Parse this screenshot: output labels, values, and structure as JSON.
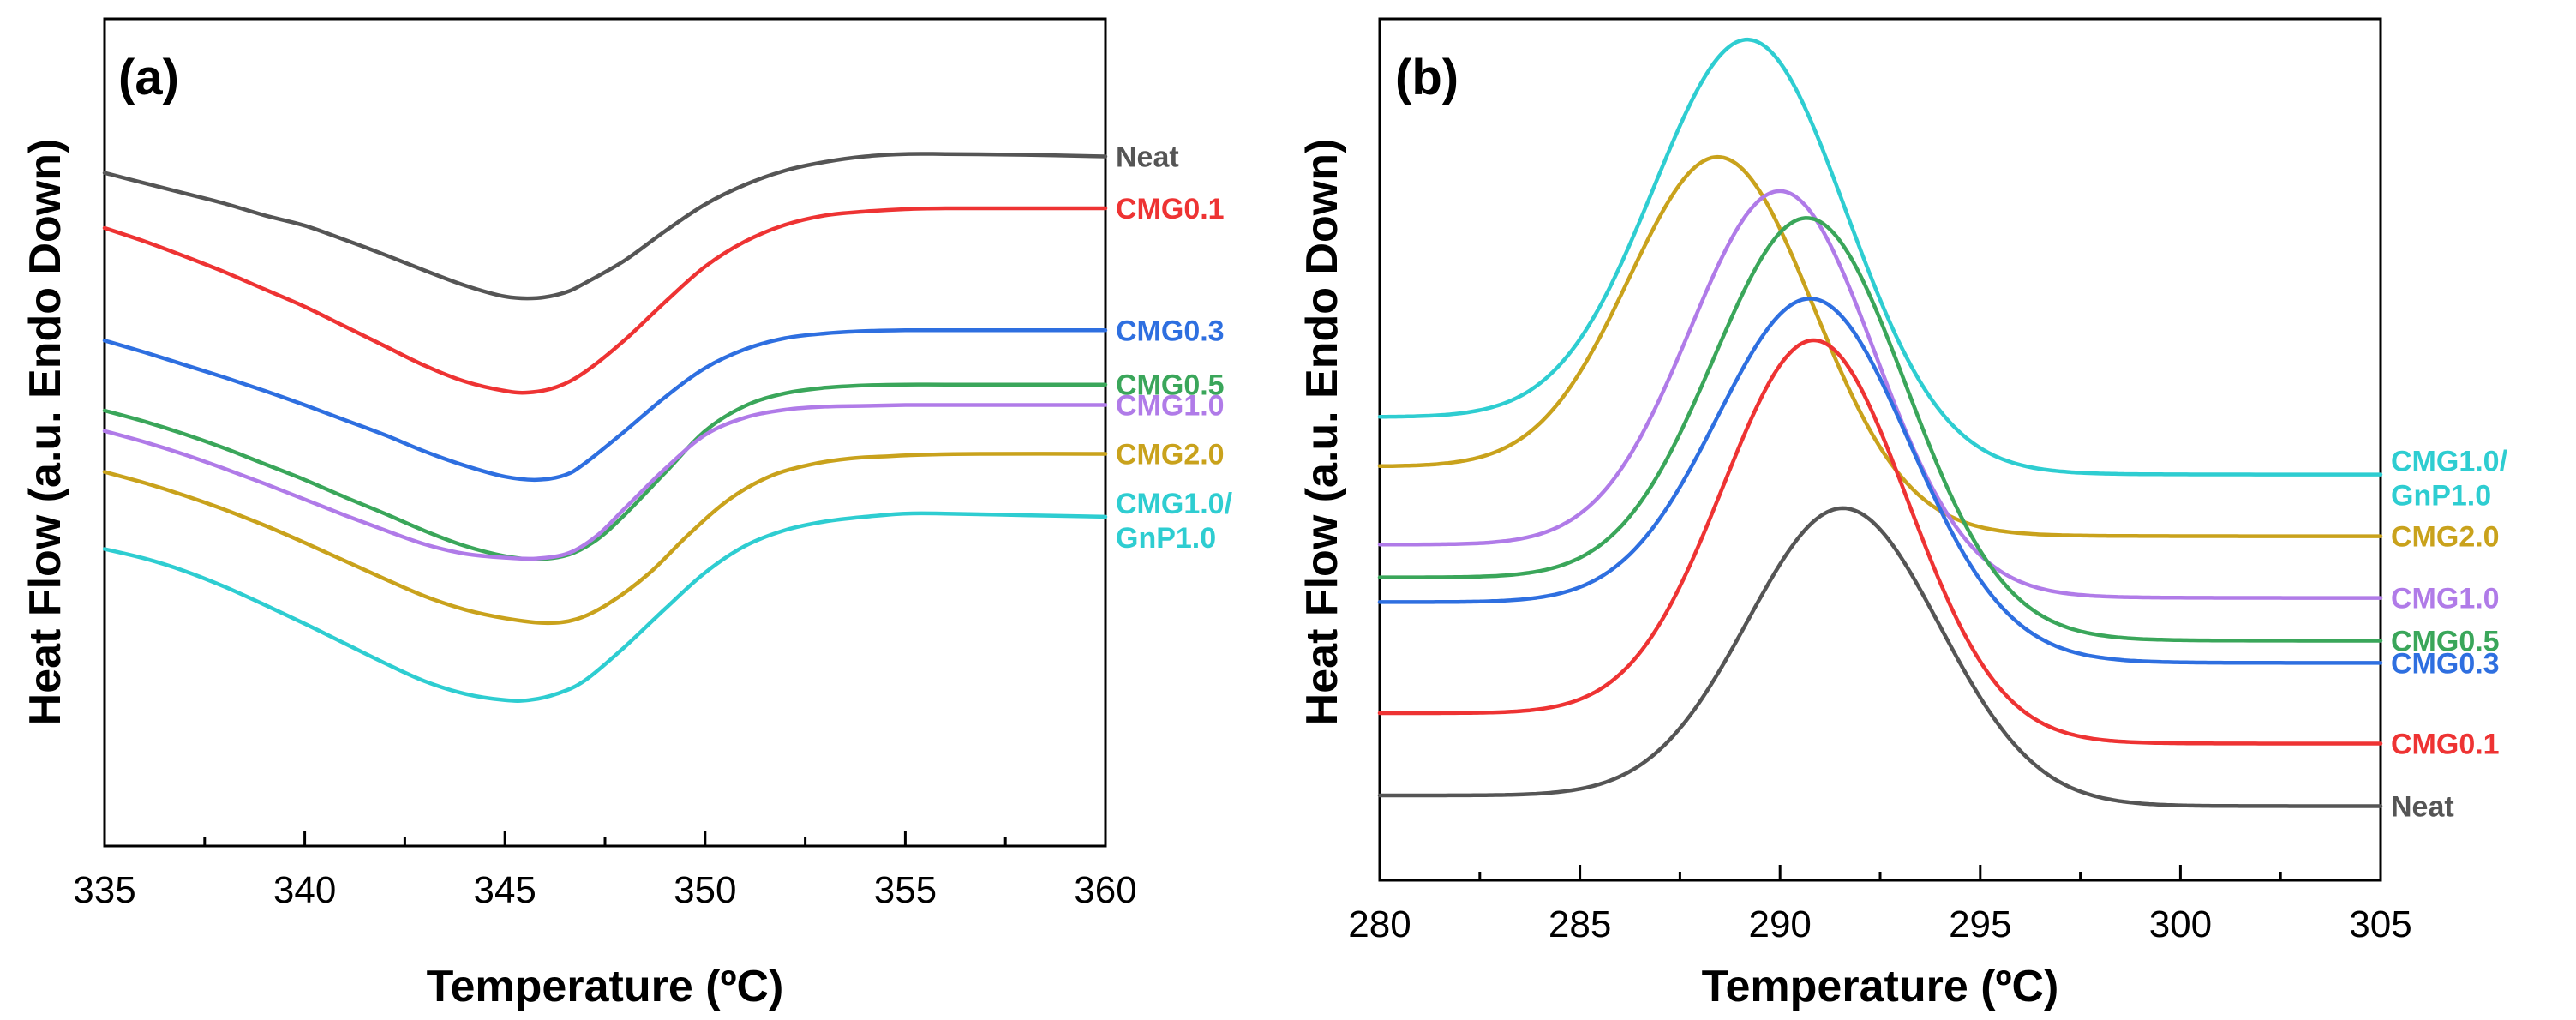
{
  "chart_data": [
    {
      "type": "line",
      "panel_label": "(a)",
      "xlabel": "Temperature (ºC)",
      "ylabel": "Heat Flow (a.u. Endo Down)",
      "xlim": [
        335,
        360
      ],
      "ylim": [
        0,
        100
      ],
      "xticks": [
        "335",
        "340",
        "345",
        "350",
        "355",
        "360"
      ],
      "y_ticks_labeled": false,
      "series": [
        {
          "name": "Neat",
          "color": "#555555",
          "label_lines": [
            "Neat"
          ],
          "points": [
            [
              335,
              82.6
            ],
            [
              336,
              81.3
            ],
            [
              337,
              80.0
            ],
            [
              338,
              78.7
            ],
            [
              339,
              77.2
            ],
            [
              340,
              75.9
            ],
            [
              341,
              74.1
            ],
            [
              342,
              72.2
            ],
            [
              343,
              70.2
            ],
            [
              344,
              68.3
            ],
            [
              345,
              66.9
            ],
            [
              345.8,
              66.7
            ],
            [
              346.5,
              67.4
            ],
            [
              347,
              68.6
            ],
            [
              348,
              71.5
            ],
            [
              349,
              75.2
            ],
            [
              350,
              78.6
            ],
            [
              351,
              81.1
            ],
            [
              352,
              82.9
            ],
            [
              353,
              84.0
            ],
            [
              354,
              84.7
            ],
            [
              355,
              85.0
            ],
            [
              356,
              85.0
            ],
            [
              358,
              84.9
            ],
            [
              360,
              84.7
            ]
          ]
        },
        {
          "name": "CMG0.1",
          "color": "#ee3333",
          "label_lines": [
            "CMG0.1"
          ],
          "points": [
            [
              335,
              75.6
            ],
            [
              336,
              73.9
            ],
            [
              337,
              72.0
            ],
            [
              338,
              70.0
            ],
            [
              339,
              67.8
            ],
            [
              340,
              65.6
            ],
            [
              341,
              63.1
            ],
            [
              342,
              60.6
            ],
            [
              343,
              58.1
            ],
            [
              344,
              56.1
            ],
            [
              345,
              54.9
            ],
            [
              345.6,
              54.7
            ],
            [
              346.3,
              55.4
            ],
            [
              347,
              57.3
            ],
            [
              348,
              61.4
            ],
            [
              349,
              66.2
            ],
            [
              350,
              70.7
            ],
            [
              351,
              73.9
            ],
            [
              352,
              76.0
            ],
            [
              353,
              77.2
            ],
            [
              354,
              77.7
            ],
            [
              355,
              78.0
            ],
            [
              356,
              78.1
            ],
            [
              358,
              78.1
            ],
            [
              360,
              78.1
            ]
          ]
        },
        {
          "name": "CMG0.3",
          "color": "#2e6fe0",
          "label_lines": [
            "CMG0.3"
          ],
          "points": [
            [
              335,
              61.3
            ],
            [
              336,
              59.8
            ],
            [
              337,
              58.2
            ],
            [
              338,
              56.6
            ],
            [
              339,
              54.9
            ],
            [
              340,
              53.1
            ],
            [
              341,
              51.2
            ],
            [
              342,
              49.3
            ],
            [
              343,
              47.2
            ],
            [
              344,
              45.4
            ],
            [
              345,
              44.0
            ],
            [
              345.8,
              43.6
            ],
            [
              346.5,
              44.2
            ],
            [
              347,
              45.7
            ],
            [
              348,
              49.8
            ],
            [
              349,
              54.1
            ],
            [
              350,
              57.8
            ],
            [
              351,
              60.2
            ],
            [
              352,
              61.6
            ],
            [
              353,
              62.2
            ],
            [
              354,
              62.5
            ],
            [
              355,
              62.6
            ],
            [
              356,
              62.6
            ],
            [
              358,
              62.6
            ],
            [
              360,
              62.6
            ]
          ]
        },
        {
          "name": "CMG0.5",
          "color": "#3aa65a",
          "label_lines": [
            "CMG0.5"
          ],
          "points": [
            [
              335,
              52.4
            ],
            [
              336,
              51.0
            ],
            [
              337,
              49.4
            ],
            [
              338,
              47.6
            ],
            [
              339,
              45.6
            ],
            [
              340,
              43.6
            ],
            [
              341,
              41.4
            ],
            [
              342,
              39.3
            ],
            [
              343,
              37.1
            ],
            [
              344,
              35.2
            ],
            [
              345,
              33.9
            ],
            [
              345.8,
              33.5
            ],
            [
              346.6,
              34.1
            ],
            [
              347.3,
              36.0
            ],
            [
              348,
              39.2
            ],
            [
              349,
              44.5
            ],
            [
              350,
              49.8
            ],
            [
              351,
              53.0
            ],
            [
              352,
              54.6
            ],
            [
              353,
              55.3
            ],
            [
              354,
              55.6
            ],
            [
              355,
              55.7
            ],
            [
              356,
              55.7
            ],
            [
              358,
              55.7
            ],
            [
              360,
              55.7
            ]
          ]
        },
        {
          "name": "CMG1.0",
          "color": "#b07be8",
          "label_lines": [
            "CMG1.0"
          ],
          "points": [
            [
              335,
              49.8
            ],
            [
              336,
              48.4
            ],
            [
              337,
              46.8
            ],
            [
              338,
              45.0
            ],
            [
              339,
              43.1
            ],
            [
              340,
              41.1
            ],
            [
              341,
              39.1
            ],
            [
              342,
              37.2
            ],
            [
              343,
              35.4
            ],
            [
              344,
              34.2
            ],
            [
              345,
              33.7
            ],
            [
              345.8,
              33.6
            ],
            [
              346.6,
              34.3
            ],
            [
              347.3,
              36.5
            ],
            [
              348,
              40.0
            ],
            [
              349,
              45.0
            ],
            [
              350,
              49.3
            ],
            [
              351,
              51.5
            ],
            [
              352,
              52.5
            ],
            [
              353,
              52.9
            ],
            [
              354,
              53.0
            ],
            [
              355,
              53.1
            ],
            [
              356,
              53.1
            ],
            [
              358,
              53.1
            ],
            [
              360,
              53.1
            ]
          ]
        },
        {
          "name": "CMG2.0",
          "color": "#c9a21c",
          "label_lines": [
            "CMG2.0"
          ],
          "points": [
            [
              335,
              44.6
            ],
            [
              336,
              43.2
            ],
            [
              337,
              41.6
            ],
            [
              338,
              39.8
            ],
            [
              339,
              37.8
            ],
            [
              340,
              35.6
            ],
            [
              341,
              33.3
            ],
            [
              342,
              31.0
            ],
            [
              343,
              28.8
            ],
            [
              344,
              27.1
            ],
            [
              345,
              26.0
            ],
            [
              346,
              25.4
            ],
            [
              346.8,
              25.9
            ],
            [
              347.6,
              27.9
            ],
            [
              348.6,
              31.7
            ],
            [
              349.6,
              36.7
            ],
            [
              350.6,
              41.1
            ],
            [
              351.6,
              44.0
            ],
            [
              352.6,
              45.5
            ],
            [
              353.6,
              46.3
            ],
            [
              354.6,
              46.6
            ],
            [
              355.6,
              46.8
            ],
            [
              357,
              46.9
            ],
            [
              360,
              46.9
            ]
          ]
        },
        {
          "name": "CMG1.0/GnP1.0",
          "color": "#2ecdd1",
          "label_lines": [
            "CMG1.0/",
            "GnP1.0"
          ],
          "points": [
            [
              335,
              34.8
            ],
            [
              336,
              33.6
            ],
            [
              337,
              32.0
            ],
            [
              338,
              30.0
            ],
            [
              339,
              27.7
            ],
            [
              340,
              25.3
            ],
            [
              341,
              22.8
            ],
            [
              342,
              20.3
            ],
            [
              343,
              18.0
            ],
            [
              344,
              16.4
            ],
            [
              345,
              15.6
            ],
            [
              345.6,
              15.6
            ],
            [
              346.3,
              16.4
            ],
            [
              347,
              18.1
            ],
            [
              348,
              22.4
            ],
            [
              349,
              27.2
            ],
            [
              350,
              31.8
            ],
            [
              351,
              35.2
            ],
            [
              352,
              37.2
            ],
            [
              353,
              38.3
            ],
            [
              354,
              38.9
            ],
            [
              355,
              39.3
            ],
            [
              356,
              39.3
            ],
            [
              358,
              39.1
            ],
            [
              360,
              38.9
            ]
          ]
        }
      ]
    },
    {
      "type": "line",
      "panel_label": "(b)",
      "xlabel": "Temperature (ºC)",
      "ylabel": "Heat Flow (a.u. Endo Down)",
      "xlim": [
        280,
        305
      ],
      "ylim": [
        0,
        100
      ],
      "xticks": [
        "280",
        "285",
        "290",
        "295",
        "300",
        "305"
      ],
      "y_ticks_labeled": false,
      "series": [
        {
          "name": "CMG1.0/GnP1.0",
          "color": "#2ecdd1",
          "label_lines": [
            "CMG1.0/",
            "GnP1.0"
          ],
          "base_start": 53.5,
          "base_end": 46.5,
          "peak_x": 289.3,
          "peak_y": 99.3,
          "width": 2.4
        },
        {
          "name": "CMG2.0",
          "color": "#c9a21c",
          "label_lines": [
            "CMG2.0"
          ],
          "base_start": 47.5,
          "base_end": 39.0,
          "peak_x": 288.6,
          "peak_y": 85.0,
          "width": 2.3
        },
        {
          "name": "CMG1.0",
          "color": "#b07be8",
          "label_lines": [
            "CMG1.0"
          ],
          "base_start": 38.0,
          "base_end": 31.5,
          "peak_x": 290.1,
          "peak_y": 80.9,
          "width": 2.3
        },
        {
          "name": "CMG0.5",
          "color": "#3aa65a",
          "label_lines": [
            "CMG0.5"
          ],
          "base_start": 34.0,
          "base_end": 26.3,
          "peak_x": 290.8,
          "peak_y": 77.6,
          "width": 2.4
        },
        {
          "name": "CMG0.3",
          "color": "#2e6fe0",
          "label_lines": [
            "CMG0.3"
          ],
          "base_start": 31.0,
          "base_end": 23.6,
          "peak_x": 290.9,
          "peak_y": 67.8,
          "width": 2.4
        },
        {
          "name": "CMG0.1",
          "color": "#ee3333",
          "label_lines": [
            "CMG0.1"
          ],
          "base_start": 17.5,
          "base_end": 13.8,
          "peak_x": 290.9,
          "peak_y": 62.8,
          "width": 2.3
        },
        {
          "name": "Neat",
          "color": "#555555",
          "label_lines": [
            "Neat"
          ],
          "base_start": 7.5,
          "base_end": 6.2,
          "peak_x": 291.6,
          "peak_y": 42.4,
          "width": 2.4
        }
      ]
    }
  ]
}
